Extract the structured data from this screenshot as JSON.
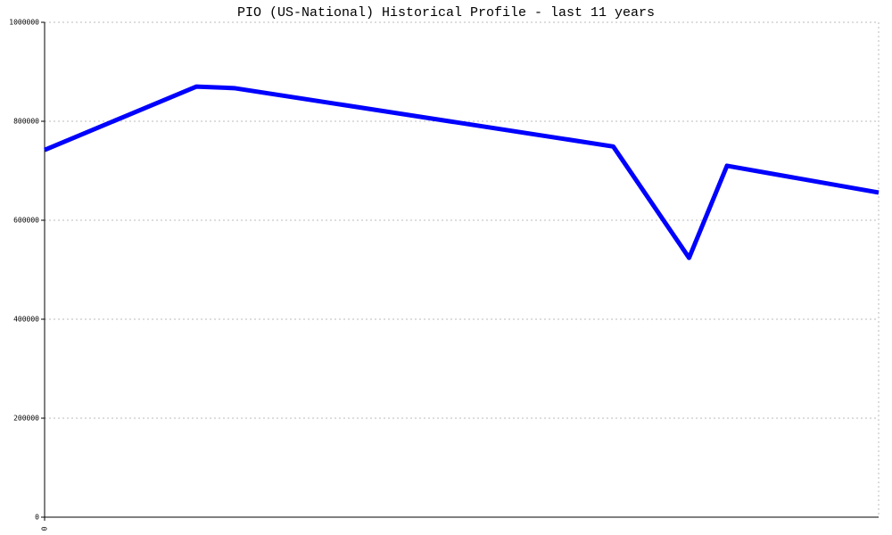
{
  "chart_data": {
    "type": "line",
    "title": "PIO (US-National) Historical Profile - last 11 years",
    "x": [
      0,
      2,
      2.5,
      7.5,
      8.5,
      9,
      11
    ],
    "series": [
      {
        "color": "#0000ff",
        "values": [
          742000,
          870000,
          867000,
          749000,
          524000,
          710000,
          656000
        ]
      }
    ],
    "xlim": [
      0,
      11
    ],
    "xticks": [
      0
    ],
    "ylim": [
      0,
      1000000
    ],
    "yticks": [
      0,
      200000,
      400000,
      600000,
      800000,
      1000000
    ],
    "grid": true
  }
}
